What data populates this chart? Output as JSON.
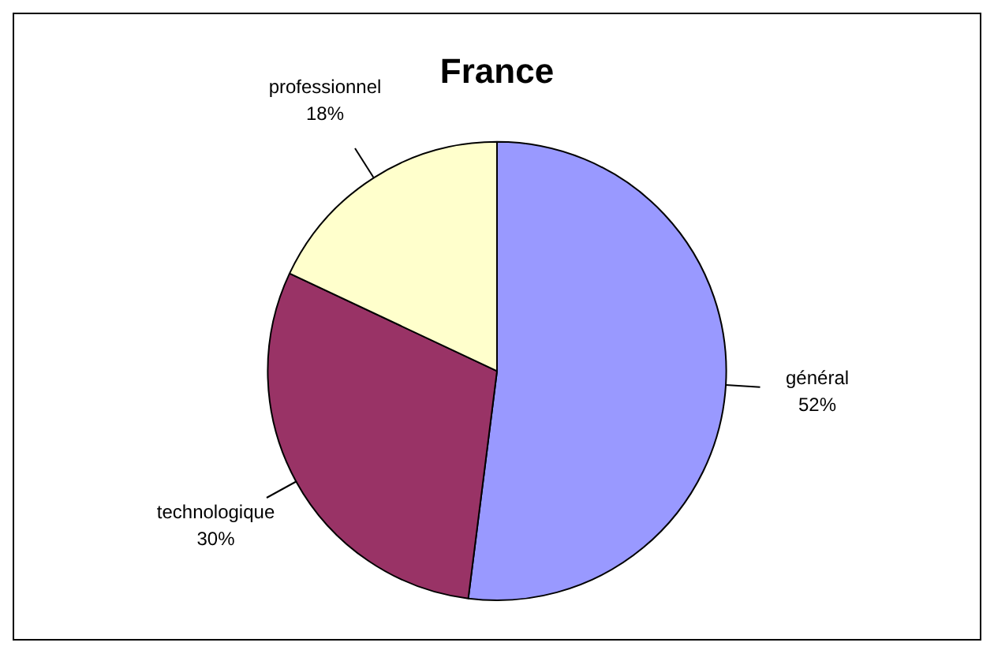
{
  "chart_data": {
    "type": "pie",
    "title": "France",
    "categories": [
      "général",
      "technologique",
      "professionnel"
    ],
    "values": [
      52,
      30,
      18
    ],
    "value_labels": [
      "52%",
      "30%",
      "18%"
    ],
    "colors": [
      "#9999ff",
      "#993366",
      "#ffffcc"
    ]
  }
}
